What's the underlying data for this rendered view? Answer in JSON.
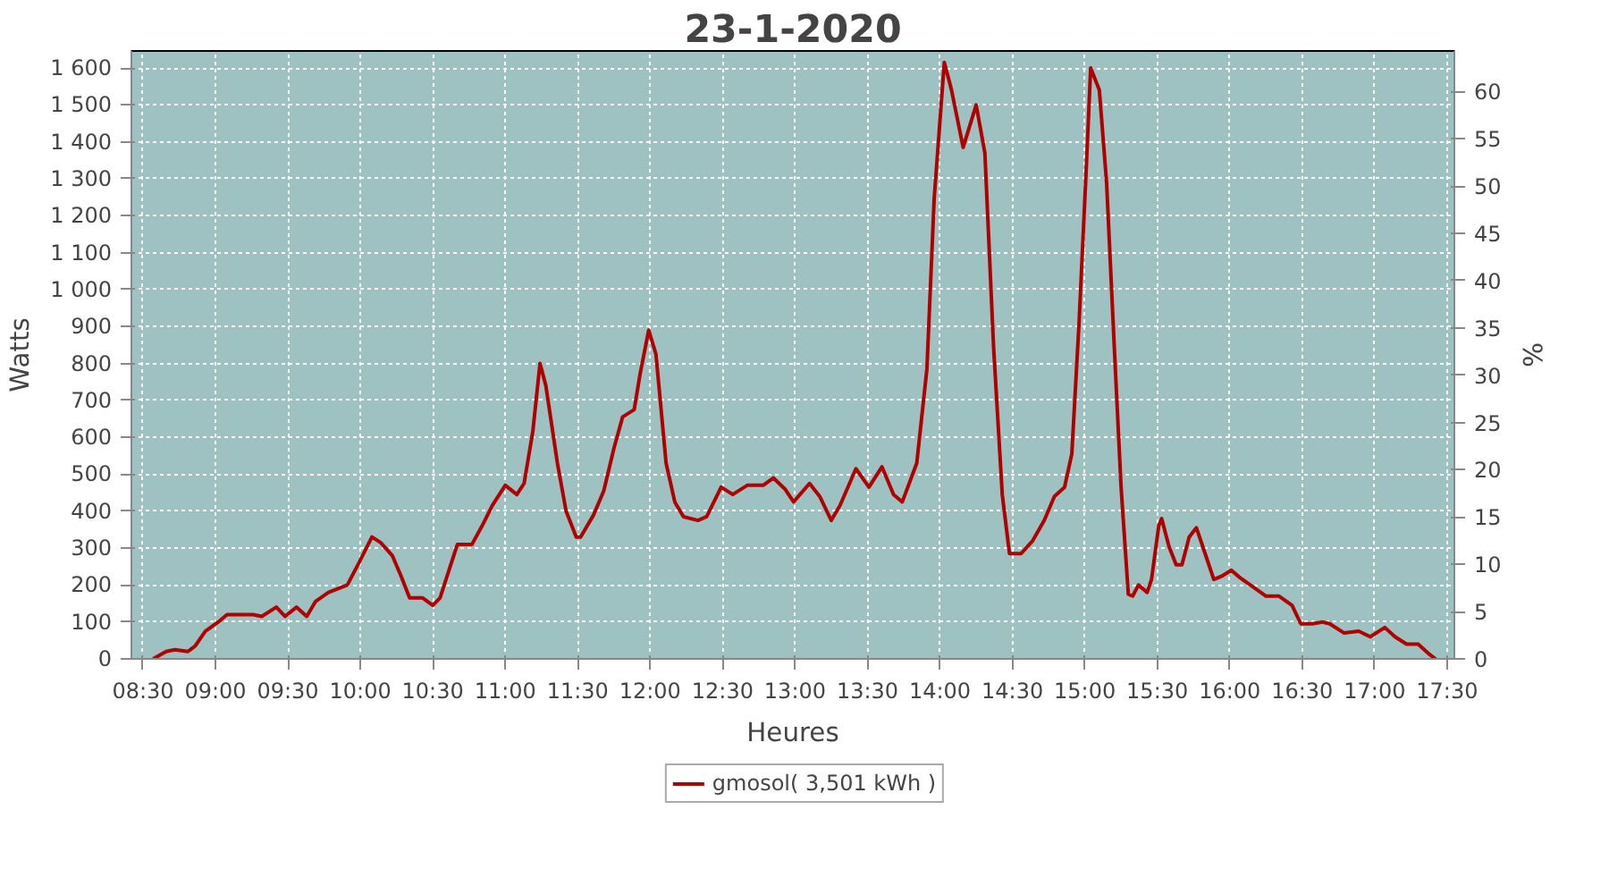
{
  "chart_data": {
    "type": "line",
    "title": "23-1-2020",
    "xlabel": "Heures",
    "ylabel": "Watts",
    "y2label": "%",
    "x": [
      8.57,
      8.66,
      8.72,
      8.81,
      8.86,
      8.93,
      9.02,
      9.08,
      9.26,
      9.32,
      9.42,
      9.48,
      9.56,
      9.63,
      9.69,
      9.78,
      9.91,
      9.99,
      10.08,
      10.14,
      10.22,
      10.28,
      10.34,
      10.43,
      10.5,
      10.55,
      10.62,
      10.67,
      10.77,
      10.84,
      10.91,
      11.0,
      11.08,
      11.13,
      11.19,
      11.24,
      11.28,
      11.36,
      11.42,
      11.49,
      11.52,
      11.61,
      11.68,
      11.75,
      11.81,
      11.89,
      11.93,
      11.99,
      12.04,
      12.11,
      12.17,
      12.23,
      12.33,
      12.39,
      12.49,
      12.57,
      12.67,
      12.78,
      12.85,
      12.93,
      12.99,
      13.1,
      13.17,
      13.25,
      13.31,
      13.42,
      13.51,
      13.6,
      13.68,
      13.74,
      13.84,
      13.91,
      13.96,
      14.03,
      14.08,
      14.16,
      14.25,
      14.31,
      14.37,
      14.43,
      14.48,
      14.56,
      14.64,
      14.72,
      14.79,
      14.86,
      14.91,
      14.96,
      15.01,
      15.04,
      15.1,
      15.15,
      15.2,
      15.25,
      15.3,
      15.33,
      15.37,
      15.43,
      15.46,
      15.51,
      15.53,
      15.58,
      15.63,
      15.67,
      15.72,
      15.77,
      15.83,
      15.89,
      15.95,
      16.01,
      16.07,
      16.16,
      16.25,
      16.34,
      16.43,
      16.49,
      16.57,
      16.64,
      16.69,
      16.79,
      16.89,
      16.97,
      17.07,
      17.14,
      17.22,
      17.3,
      17.37,
      17.42
    ],
    "series": [
      {
        "name": "gmosol( 3,501 kWh )",
        "color": "#b00000",
        "values": [
          0,
          20,
          25,
          20,
          35,
          75,
          100,
          120,
          120,
          115,
          140,
          115,
          140,
          115,
          155,
          180,
          200,
          260,
          330,
          315,
          280,
          225,
          165,
          165,
          145,
          165,
          250,
          310,
          310,
          360,
          415,
          470,
          445,
          475,
          615,
          800,
          740,
          530,
          400,
          330,
          330,
          390,
          455,
          570,
          655,
          675,
          770,
          890,
          825,
          530,
          425,
          385,
          375,
          385,
          465,
          445,
          470,
          470,
          490,
          460,
          425,
          475,
          440,
          375,
          415,
          515,
          465,
          520,
          445,
          425,
          530,
          785,
          1245,
          1615,
          1540,
          1385,
          1500,
          1370,
          845,
          445,
          285,
          285,
          320,
          375,
          440,
          465,
          555,
          910,
          1330,
          1600,
          1540,
          1290,
          870,
          465,
          175,
          170,
          200,
          180,
          215,
          360,
          380,
          305,
          255,
          255,
          330,
          355,
          285,
          215,
          225,
          240,
          220,
          195,
          170,
          170,
          145,
          95,
          95,
          100,
          95,
          70,
          75,
          60,
          85,
          60,
          40,
          40,
          15,
          0
        ]
      }
    ],
    "xlim": [
      8.42,
      17.55
    ],
    "xticks": [
      {
        "value": 8.5,
        "label": "08:30"
      },
      {
        "value": 9,
        "label": "09:00"
      },
      {
        "value": 9.5,
        "label": "09:30"
      },
      {
        "value": 10,
        "label": "10:00"
      },
      {
        "value": 10.5,
        "label": "10:30"
      },
      {
        "value": 11,
        "label": "11:00"
      },
      {
        "value": 11.5,
        "label": "11:30"
      },
      {
        "value": 12,
        "label": "12:00"
      },
      {
        "value": 12.5,
        "label": "12:30"
      },
      {
        "value": 13,
        "label": "13:00"
      },
      {
        "value": 13.5,
        "label": "13:30"
      },
      {
        "value": 14,
        "label": "14:00"
      },
      {
        "value": 14.5,
        "label": "14:30"
      },
      {
        "value": 15,
        "label": "15:00"
      },
      {
        "value": 15.5,
        "label": "15:30"
      },
      {
        "value": 16,
        "label": "16:00"
      },
      {
        "value": 16.5,
        "label": "16:30"
      },
      {
        "value": 17,
        "label": "17:00"
      },
      {
        "value": 17.5,
        "label": "17:30"
      }
    ],
    "ylim": [
      0,
      1646
    ],
    "yticks": [
      0,
      100,
      200,
      300,
      400,
      500,
      600,
      700,
      800,
      900,
      {
        "value": 1000,
        "label": "1 000"
      },
      {
        "value": 1100,
        "label": "1 100"
      },
      {
        "value": 1200,
        "label": "1 200"
      },
      {
        "value": 1300,
        "label": "1 300"
      },
      {
        "value": 1400,
        "label": "1 400"
      },
      {
        "value": 1500,
        "label": "1 500"
      },
      {
        "value": 1600,
        "label": "1 600"
      }
    ],
    "y2lim": [
      0,
      64.3
    ],
    "y2ticks": [
      0,
      5,
      10,
      15,
      20,
      25,
      30,
      35,
      40,
      45,
      50,
      55,
      60
    ],
    "grid": true,
    "legend": "bottom",
    "marker": "none",
    "line_style": "solid"
  }
}
